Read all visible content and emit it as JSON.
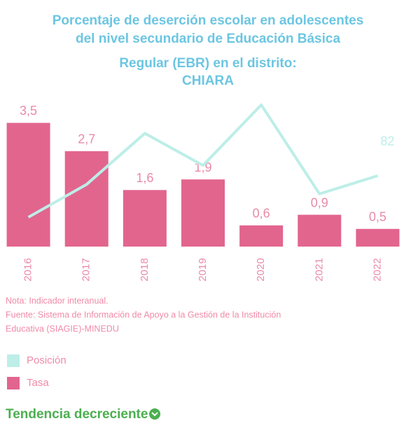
{
  "chart_data": {
    "type": "bar_line",
    "title": [
      "Porcentaje de deserción escolar en adolescentes",
      "del nivel secundario de Educación Básica",
      "Regular (EBR) en el distrito:",
      "CHIARA"
    ],
    "categories": [
      "2016",
      "2017",
      "2018",
      "2019",
      "2020",
      "2021",
      "2022"
    ],
    "ylim": [
      0,
      4.4
    ],
    "y2lim": [
      0,
      180
    ],
    "series": [
      {
        "name": "Posición",
        "color": "#bdeee8",
        "axis": "y2",
        "values": [
          34,
          72,
          131,
          94,
          164,
          61,
          82
        ],
        "value_labels": [
          null,
          null,
          null,
          null,
          null,
          null,
          "82"
        ]
      },
      {
        "name": "Tasa",
        "color": "#e2658e",
        "values": [
          3.5,
          2.7,
          1.6,
          1.9,
          0.6,
          0.9,
          0.5
        ],
        "value_labels": [
          "3,5",
          "2,7",
          "1,6",
          "1,9",
          "0,6",
          "0,9",
          "0,5"
        ]
      }
    ],
    "note": "Nota: Indicador interanual.",
    "source": [
      "Fuente: Sistema de Información de Apoyo a la Gestión de la Institución",
      "Educativa (SIAGIE)-MINEDU"
    ],
    "trend": "Tendencia decreciente"
  }
}
